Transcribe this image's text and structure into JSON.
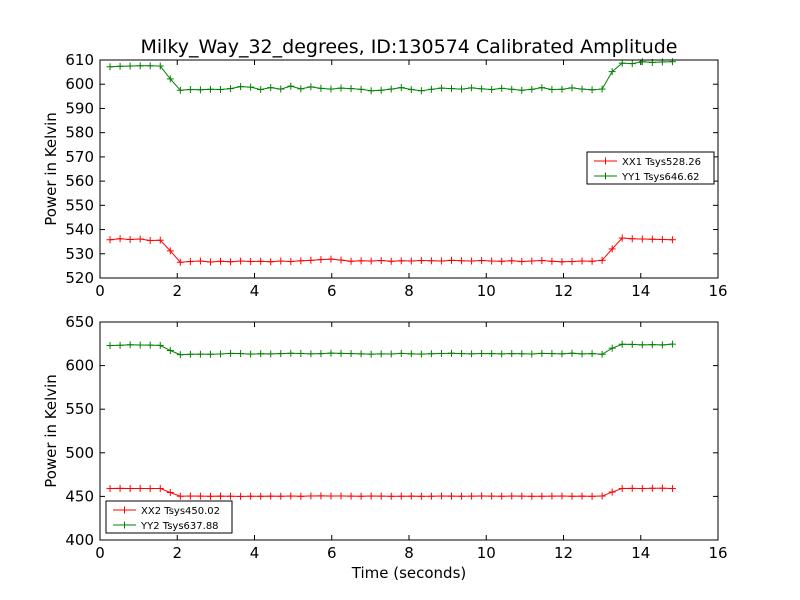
{
  "chart_data": [
    {
      "type": "line",
      "title": "Milky_Way_32_degrees, ID:130574 Calibrated Amplitude",
      "xlabel": "",
      "ylabel": "Power in Kelvin",
      "xlim": [
        0,
        16
      ],
      "ylim": [
        520,
        610
      ],
      "xticks": [
        0,
        2,
        4,
        6,
        8,
        10,
        12,
        14,
        16
      ],
      "yticks": [
        520,
        530,
        540,
        550,
        560,
        570,
        580,
        590,
        600,
        610
      ],
      "grid": false,
      "legend_position": "center-right",
      "x": [
        0.26,
        0.52,
        0.78,
        1.04,
        1.3,
        1.56,
        1.82,
        2.08,
        2.34,
        2.6,
        2.86,
        3.12,
        3.38,
        3.64,
        3.9,
        4.16,
        4.42,
        4.68,
        4.94,
        5.2,
        5.46,
        5.72,
        5.98,
        6.24,
        6.5,
        6.76,
        7.02,
        7.28,
        7.54,
        7.8,
        8.06,
        8.32,
        8.58,
        8.84,
        9.1,
        9.36,
        9.62,
        9.88,
        10.14,
        10.4,
        10.66,
        10.92,
        11.18,
        11.44,
        11.7,
        11.96,
        12.22,
        12.48,
        12.74,
        13.0,
        13.26,
        13.52,
        13.78,
        14.04,
        14.3,
        14.56,
        14.82
      ],
      "series": [
        {
          "name": "XX1 Tsys528.26",
          "color": "#ff0000",
          "values": [
            535.8,
            536.2,
            535.9,
            536.1,
            535.5,
            535.6,
            531.2,
            526.5,
            526.8,
            527.0,
            526.6,
            526.9,
            526.7,
            527.0,
            526.8,
            526.9,
            526.7,
            527.0,
            526.8,
            527.1,
            527.3,
            527.6,
            527.8,
            527.4,
            526.9,
            527.1,
            527.0,
            527.2,
            526.9,
            527.1,
            527.0,
            527.2,
            527.1,
            527.0,
            527.3,
            527.1,
            527.0,
            527.2,
            527.0,
            526.9,
            527.1,
            526.8,
            527.0,
            527.2,
            526.9,
            526.7,
            526.8,
            527.0,
            526.9,
            527.3,
            532.0,
            536.5,
            536.2,
            536.1,
            536.0,
            535.9,
            535.8
          ]
        },
        {
          "name": "YY1 Tsys646.62",
          "color": "#008000",
          "values": [
            607.2,
            607.4,
            607.5,
            607.6,
            607.6,
            607.5,
            602.2,
            597.5,
            597.8,
            597.7,
            597.9,
            597.8,
            598.2,
            599.0,
            598.8,
            597.8,
            598.6,
            598.0,
            599.2,
            598.1,
            598.9,
            598.3,
            598.0,
            598.4,
            598.2,
            597.9,
            597.3,
            597.5,
            598.0,
            598.6,
            597.8,
            597.3,
            597.9,
            598.4,
            598.2,
            598.0,
            598.5,
            598.1,
            597.8,
            598.3,
            597.9,
            597.5,
            597.9,
            598.6,
            597.8,
            597.9,
            598.5,
            598.0,
            597.7,
            598.0,
            605.2,
            608.7,
            608.5,
            609.3,
            609.0,
            609.2,
            609.3
          ]
        }
      ]
    },
    {
      "type": "line",
      "title": "",
      "xlabel": "Time (seconds)",
      "ylabel": "Power in Kelvin",
      "xlim": [
        0,
        16
      ],
      "ylim": [
        400,
        650
      ],
      "xticks": [
        0,
        2,
        4,
        6,
        8,
        10,
        12,
        14,
        16
      ],
      "yticks": [
        400,
        450,
        500,
        550,
        600,
        650
      ],
      "grid": false,
      "legend_position": "lower-left",
      "x": [
        0.26,
        0.52,
        0.78,
        1.04,
        1.3,
        1.56,
        1.82,
        2.08,
        2.34,
        2.6,
        2.86,
        3.12,
        3.38,
        3.64,
        3.9,
        4.16,
        4.42,
        4.68,
        4.94,
        5.2,
        5.46,
        5.72,
        5.98,
        6.24,
        6.5,
        6.76,
        7.02,
        7.28,
        7.54,
        7.8,
        8.06,
        8.32,
        8.58,
        8.84,
        9.1,
        9.36,
        9.62,
        9.88,
        10.14,
        10.4,
        10.66,
        10.92,
        11.18,
        11.44,
        11.7,
        11.96,
        12.22,
        12.48,
        12.74,
        13.0,
        13.26,
        13.52,
        13.78,
        14.04,
        14.3,
        14.56,
        14.82
      ],
      "series": [
        {
          "name": "XX2 Tsys450.02",
          "color": "#ff0000",
          "values": [
            459.0,
            459.2,
            459.0,
            459.1,
            459.0,
            459.1,
            454.5,
            450.2,
            450.4,
            450.3,
            450.1,
            450.3,
            450.2,
            450.0,
            450.2,
            450.1,
            450.3,
            450.2,
            450.4,
            450.1,
            450.5,
            450.6,
            450.4,
            450.5,
            450.3,
            450.2,
            450.4,
            450.3,
            450.1,
            450.2,
            450.3,
            450.1,
            450.2,
            450.4,
            450.3,
            450.2,
            450.3,
            450.5,
            450.3,
            450.2,
            450.4,
            450.3,
            450.1,
            450.2,
            450.3,
            450.4,
            450.2,
            450.3,
            450.1,
            450.4,
            455.0,
            459.1,
            459.2,
            459.0,
            459.3,
            459.4,
            459.0
          ]
        },
        {
          "name": "YY2 Tsys637.88",
          "color": "#008000",
          "values": [
            623.0,
            623.3,
            623.9,
            623.6,
            623.5,
            623.2,
            617.3,
            612.5,
            613.0,
            613.1,
            613.0,
            613.3,
            614.0,
            613.8,
            613.2,
            613.6,
            613.4,
            613.7,
            614.1,
            613.9,
            613.5,
            613.7,
            614.3,
            614.0,
            613.8,
            613.5,
            613.1,
            613.4,
            613.3,
            614.0,
            613.5,
            613.2,
            613.6,
            613.9,
            614.2,
            613.8,
            613.5,
            613.9,
            613.7,
            613.4,
            613.8,
            613.6,
            613.3,
            614.0,
            613.8,
            613.5,
            614.2,
            613.4,
            613.7,
            613.0,
            620.0,
            624.5,
            624.3,
            623.8,
            624.0,
            623.7,
            624.6
          ]
        }
      ]
    }
  ]
}
